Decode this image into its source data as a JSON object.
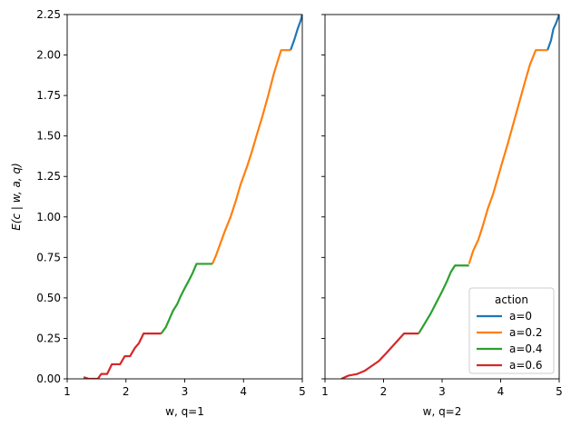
{
  "chart_data": [
    {
      "type": "line",
      "xlabel": "w, q=1",
      "ylabel": "E(c | w, a, q)",
      "xlim": [
        1,
        5
      ],
      "ylim": [
        0,
        2.25
      ],
      "xticks": [
        "1",
        "2",
        "3",
        "4",
        "5"
      ],
      "yticks": [
        "0.00",
        "0.25",
        "0.50",
        "0.75",
        "1.00",
        "1.25",
        "1.50",
        "1.75",
        "2.00",
        "2.25"
      ],
      "grid": false,
      "series": [
        {
          "name": "a=0",
          "color": "#1f77b4",
          "points": [
            [
              4.8,
              2.03
            ],
            [
              4.86,
              2.09
            ],
            [
              4.92,
              2.16
            ],
            [
              4.97,
              2.21
            ],
            [
              5.0,
              2.25
            ]
          ]
        },
        {
          "name": "a=0.2",
          "color": "#ff7f0e",
          "points": [
            [
              3.47,
              0.71
            ],
            [
              3.53,
              0.76
            ],
            [
              3.6,
              0.83
            ],
            [
              3.68,
              0.91
            ],
            [
              3.78,
              1.0
            ],
            [
              3.87,
              1.1
            ],
            [
              3.95,
              1.2
            ],
            [
              4.05,
              1.3
            ],
            [
              4.14,
              1.4
            ],
            [
              4.22,
              1.5
            ],
            [
              4.32,
              1.62
            ],
            [
              4.42,
              1.75
            ],
            [
              4.52,
              1.89
            ],
            [
              4.64,
              2.03
            ],
            [
              4.8,
              2.03
            ]
          ]
        },
        {
          "name": "a=0.4",
          "color": "#2ca02c",
          "points": [
            [
              2.6,
              0.28
            ],
            [
              2.68,
              0.32
            ],
            [
              2.74,
              0.37
            ],
            [
              2.8,
              0.42
            ],
            [
              2.87,
              0.46
            ],
            [
              2.93,
              0.51
            ],
            [
              3.0,
              0.56
            ],
            [
              3.06,
              0.6
            ],
            [
              3.13,
              0.65
            ],
            [
              3.2,
              0.71
            ],
            [
              3.47,
              0.71
            ]
          ]
        },
        {
          "name": "a=0.6",
          "color": "#d62728",
          "points": [
            [
              1.28,
              0.01
            ],
            [
              1.37,
              0.0
            ],
            [
              1.52,
              0.0
            ],
            [
              1.58,
              0.03
            ],
            [
              1.68,
              0.03
            ],
            [
              1.76,
              0.09
            ],
            [
              1.9,
              0.09
            ],
            [
              1.98,
              0.14
            ],
            [
              2.07,
              0.14
            ],
            [
              2.15,
              0.19
            ],
            [
              2.22,
              0.22
            ],
            [
              2.3,
              0.28
            ],
            [
              2.6,
              0.28
            ]
          ]
        }
      ]
    },
    {
      "type": "line",
      "xlabel": "w, q=2",
      "ylabel": "",
      "xlim": [
        1,
        5
      ],
      "ylim": [
        0,
        2.25
      ],
      "xticks": [
        "1",
        "2",
        "3",
        "4",
        "5"
      ],
      "yticks": [],
      "grid": false,
      "legend": {
        "title": "action",
        "placement": "lower-right",
        "entries": [
          {
            "label": "a=0",
            "color": "#1f77b4"
          },
          {
            "label": "a=0.2",
            "color": "#ff7f0e"
          },
          {
            "label": "a=0.4",
            "color": "#2ca02c"
          },
          {
            "label": "a=0.6",
            "color": "#d62728"
          }
        ]
      },
      "series": [
        {
          "name": "a=0",
          "color": "#1f77b4",
          "points": [
            [
              4.8,
              2.03
            ],
            [
              4.86,
              2.09
            ],
            [
              4.9,
              2.16
            ],
            [
              4.95,
              2.2
            ],
            [
              5.0,
              2.25
            ]
          ]
        },
        {
          "name": "a=0.2",
          "color": "#ff7f0e",
          "points": [
            [
              3.46,
              0.71
            ],
            [
              3.53,
              0.79
            ],
            [
              3.62,
              0.86
            ],
            [
              3.7,
              0.95
            ],
            [
              3.78,
              1.05
            ],
            [
              3.87,
              1.14
            ],
            [
              3.95,
              1.24
            ],
            [
              4.03,
              1.34
            ],
            [
              4.12,
              1.45
            ],
            [
              4.22,
              1.58
            ],
            [
              4.32,
              1.71
            ],
            [
              4.42,
              1.84
            ],
            [
              4.5,
              1.94
            ],
            [
              4.6,
              2.03
            ],
            [
              4.8,
              2.03
            ]
          ]
        },
        {
          "name": "a=0.4",
          "color": "#2ca02c",
          "points": [
            [
              2.6,
              0.28
            ],
            [
              2.7,
              0.34
            ],
            [
              2.8,
              0.4
            ],
            [
              2.9,
              0.47
            ],
            [
              3.0,
              0.54
            ],
            [
              3.08,
              0.6
            ],
            [
              3.15,
              0.66
            ],
            [
              3.22,
              0.7
            ],
            [
              3.46,
              0.7
            ]
          ]
        },
        {
          "name": "a=0.6",
          "color": "#d62728",
          "points": [
            [
              1.28,
              0.0
            ],
            [
              1.4,
              0.02
            ],
            [
              1.55,
              0.03
            ],
            [
              1.68,
              0.05
            ],
            [
              1.8,
              0.08
            ],
            [
              1.92,
              0.11
            ],
            [
              2.05,
              0.16
            ],
            [
              2.15,
              0.2
            ],
            [
              2.25,
              0.24
            ],
            [
              2.35,
              0.28
            ],
            [
              2.6,
              0.28
            ]
          ]
        }
      ]
    }
  ]
}
